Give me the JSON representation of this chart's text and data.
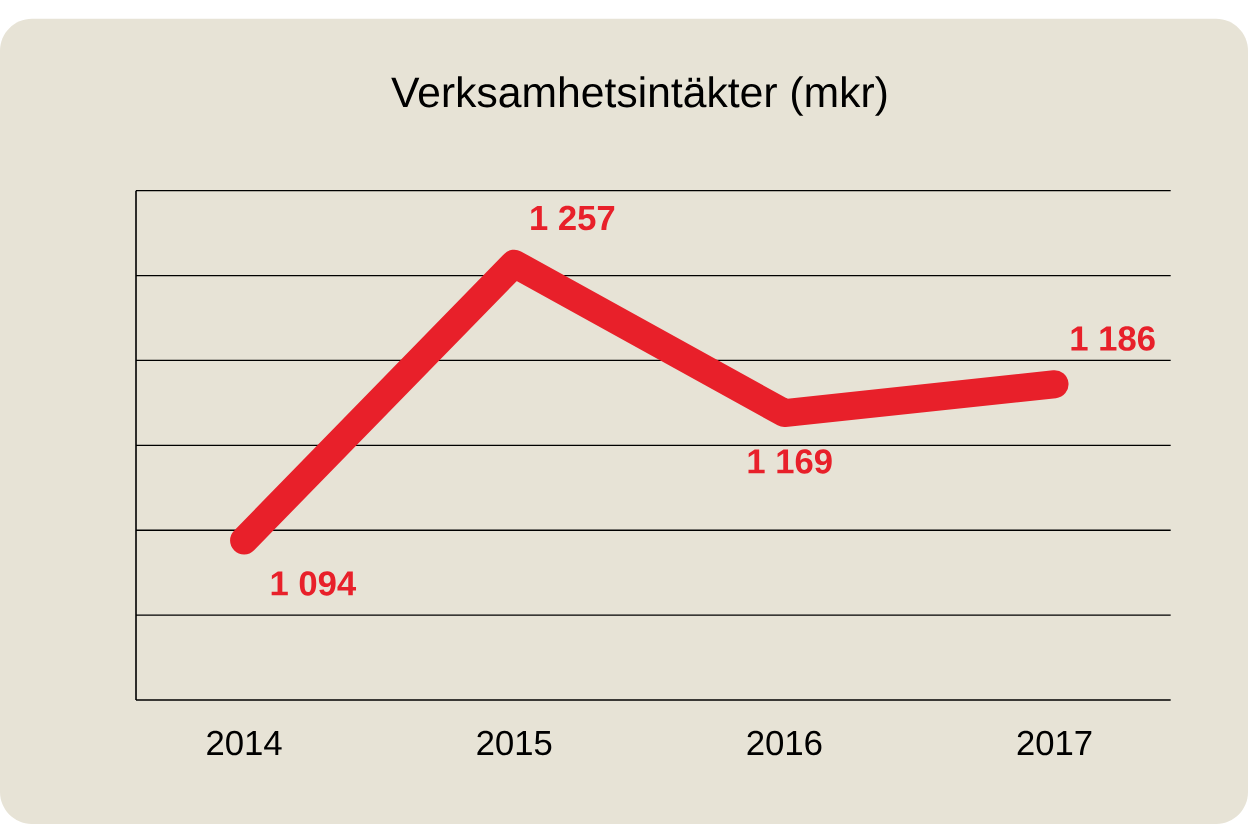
{
  "chart_data": {
    "type": "line",
    "title": "Verksamhetsintäkter (mkr)",
    "categories": [
      "2014",
      "2015",
      "2016",
      "2017"
    ],
    "values": [
      1094,
      1257,
      1169,
      1186
    ],
    "value_labels": [
      "1 094",
      "1 257",
      "1 169",
      "1 186"
    ],
    "color": "#e8202a",
    "ylim": [
      1000,
      1300
    ],
    "yticks": [
      {
        "value": 1050,
        "label": null
      },
      {
        "value": 1100,
        "label": null
      },
      {
        "value": 1150,
        "label": null
      },
      {
        "value": 1200,
        "label": null
      },
      {
        "value": 1250,
        "label": null
      },
      {
        "value": 1300,
        "label": null
      }
    ],
    "grid": "y",
    "tick_labels": "x",
    "marker": "none",
    "line_style": "solid"
  }
}
